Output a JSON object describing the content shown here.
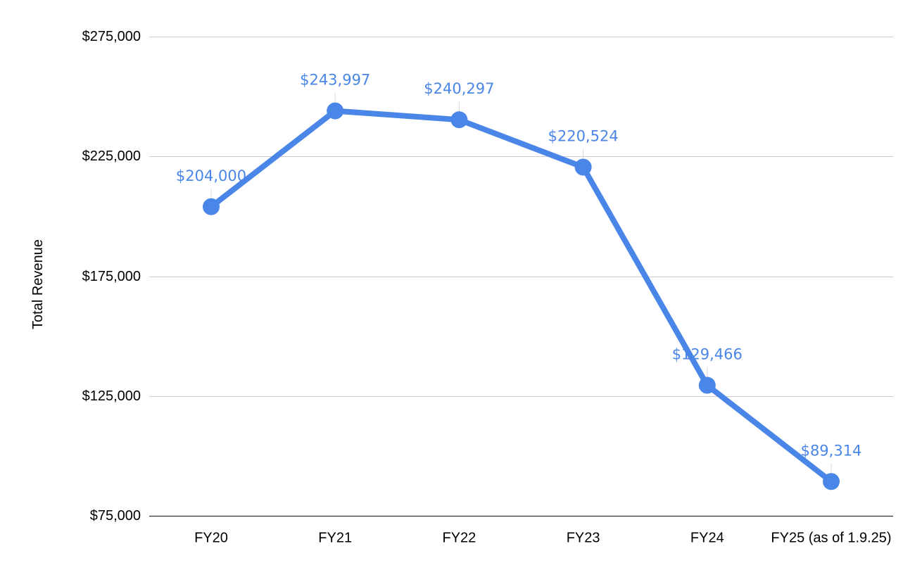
{
  "chart_data": {
    "type": "line",
    "title": "",
    "xlabel": "",
    "ylabel": "Total Revenue",
    "categories": [
      "FY20",
      "FY21",
      "FY22",
      "FY23",
      "FY24",
      "FY25 (as of 1.9.25)"
    ],
    "series": [
      {
        "values": [
          204000,
          243997,
          240297,
          220524,
          129466,
          89314
        ],
        "data_labels": [
          "$204,000",
          "$243,997",
          "$240,297",
          "$220,524",
          "$129,466",
          "$89,314"
        ],
        "color": "#4A86E8"
      }
    ],
    "ylim": [
      75000,
      275000
    ],
    "yticks": [
      75000,
      125000,
      175000,
      225000,
      275000
    ],
    "ytick_labels": [
      "$75,000",
      "$125,000",
      "$175,000",
      "$225,000",
      "$275,000"
    ],
    "grid": true,
    "legend": "none"
  }
}
